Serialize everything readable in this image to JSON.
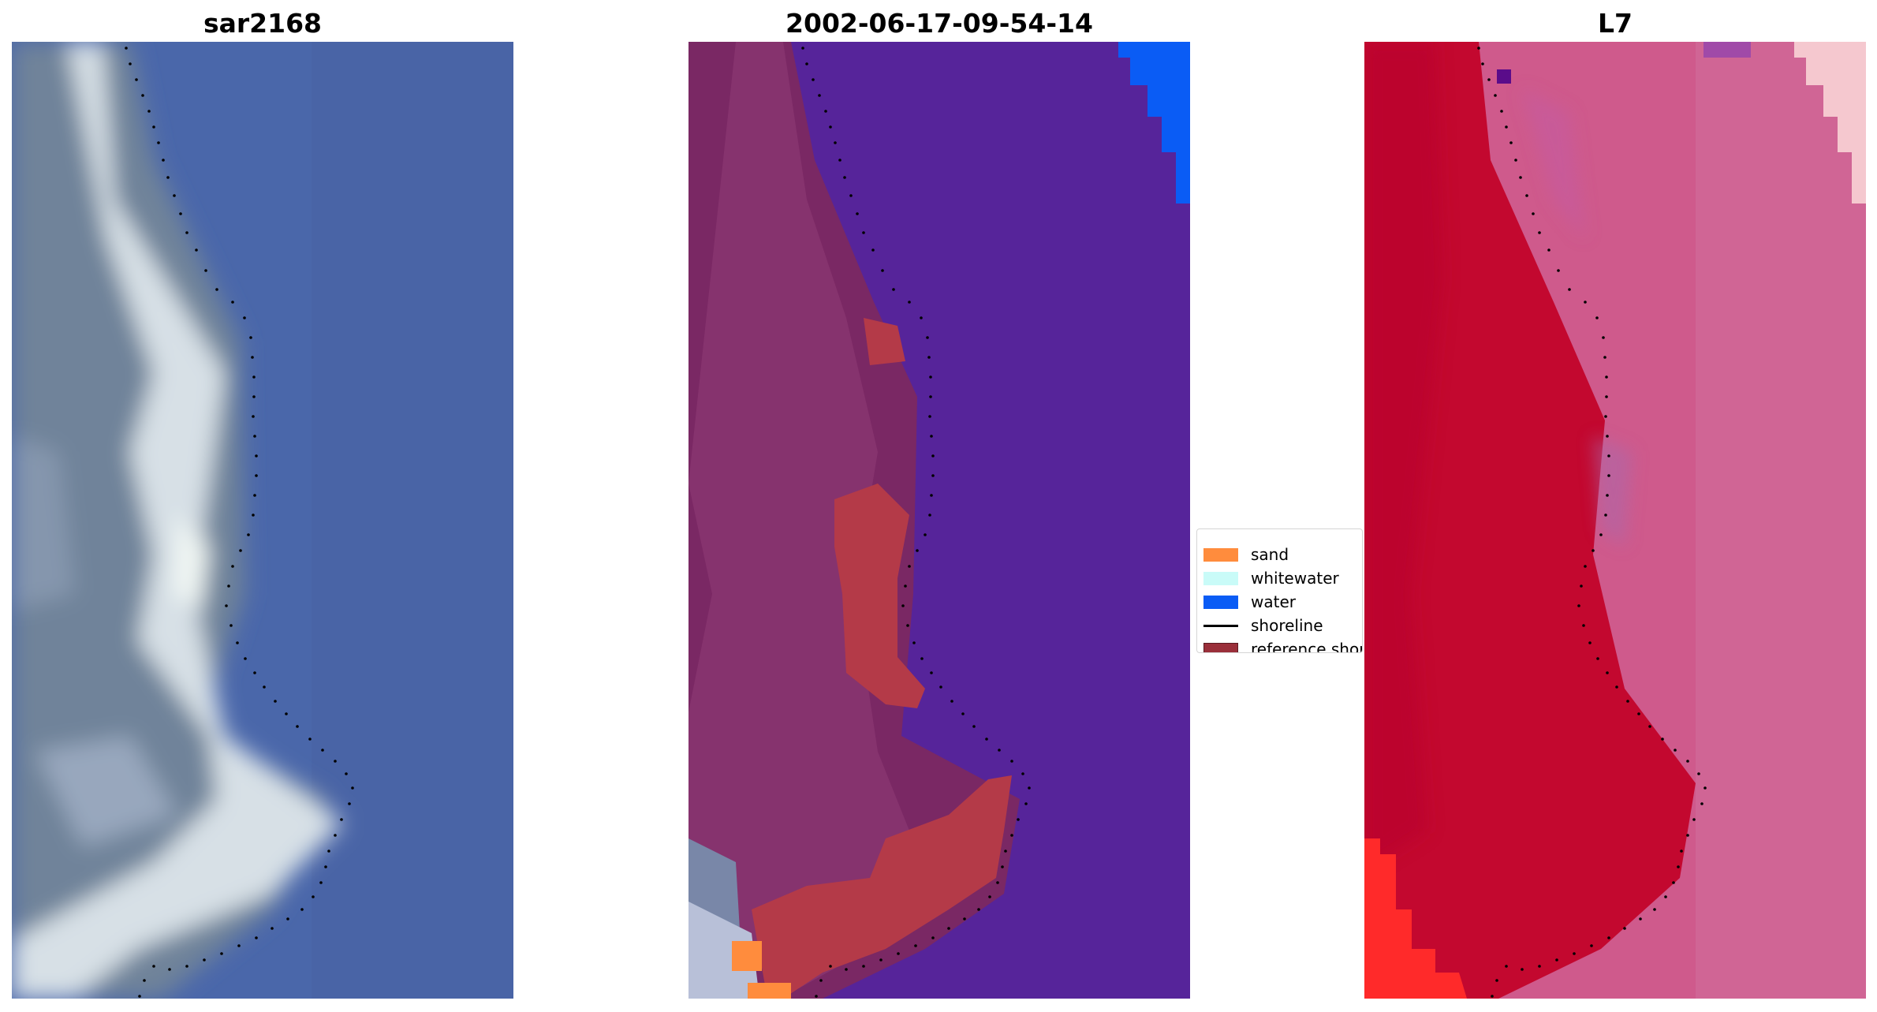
{
  "panels": [
    {
      "title": "sar2168"
    },
    {
      "title": "2002-06-17-09-54-14"
    },
    {
      "title": "L7"
    }
  ],
  "legend": {
    "items": [
      {
        "label": "sand",
        "color": "#ff8c3d",
        "kind": "patch"
      },
      {
        "label": "whitewater",
        "color": "#c9fbf8",
        "kind": "patch"
      },
      {
        "label": "water",
        "color": "#0a5cf5",
        "kind": "patch"
      },
      {
        "label": "shoreline",
        "color": "#000000",
        "kind": "line"
      },
      {
        "label": "reference shoreline buffer",
        "color": "#9a2f3a",
        "kind": "patch"
      }
    ]
  },
  "colors": {
    "rgb_water": "#4a67aa",
    "rgb_land": "#6f839a",
    "rgb_beach": "#dfe6ea",
    "class_water": "#56249a",
    "class_land": "#7a2864",
    "class_buffer": "#b43a48",
    "class_sand": "#ff8c3d",
    "class_water_blue": "#0a5cf5",
    "false_land": "#c3082f",
    "false_water": "#cf5a8c",
    "false_bright": "#ff2a2a"
  }
}
